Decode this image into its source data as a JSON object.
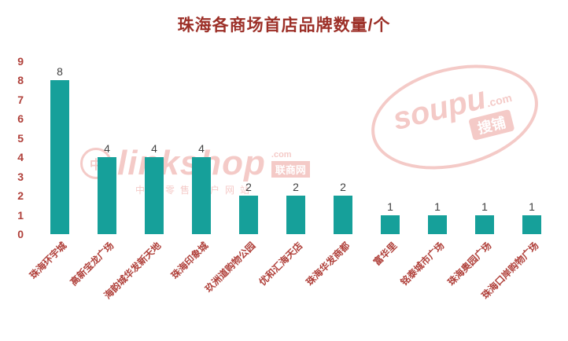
{
  "colors": {
    "bar": "#16a09a",
    "axis_text": "#b0413b",
    "title_text": "#9c2f27",
    "value_text": "#404040",
    "watermark": "#e05c55"
  },
  "chart_data": {
    "type": "bar",
    "title": "珠海各商场首店品牌数量/个",
    "categories": [
      "珠海环宇城",
      "高新宝龙广场",
      "海韵城华发新天地",
      "珠海印象城",
      "玖洲道购物公园",
      "优和汇海天店",
      "珠海华发商都",
      "富华里",
      "铭泰城市广场",
      "珠海奥园广场",
      "珠海口岸购物广场"
    ],
    "values": [
      8,
      4,
      4,
      4,
      2,
      2,
      2,
      1,
      1,
      1,
      1
    ],
    "xlabel": "",
    "ylabel": "",
    "ylim": [
      0,
      9
    ],
    "yticks": [
      0,
      1,
      2,
      3,
      4,
      5,
      6,
      7,
      8,
      9
    ],
    "grid": false,
    "legend_position": "none"
  },
  "watermarks": {
    "linkshop": {
      "logo_char": "中",
      "main": "linkshop",
      "suffix": ".com",
      "cn": "联商网",
      "tagline": "中国零售门户网站"
    },
    "soupu": {
      "main": "soupu",
      "suffix": ".com",
      "cn": "搜铺"
    }
  }
}
